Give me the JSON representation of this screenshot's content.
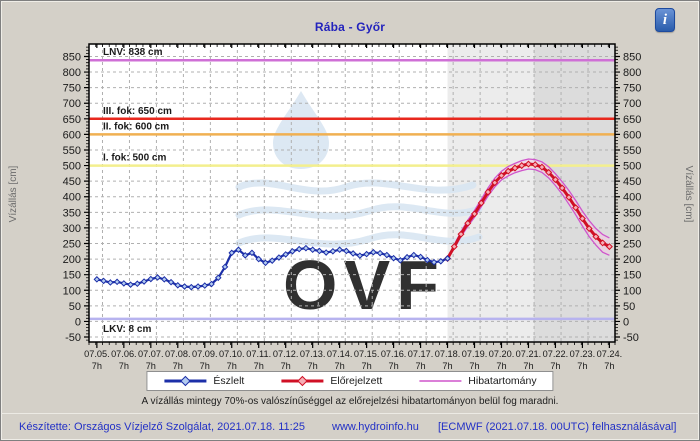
{
  "header": {
    "title": "Rába - Győr",
    "info_glyph": "i"
  },
  "chart_data": {
    "type": "line",
    "title": "Rába - Győr",
    "y_axis_label": "Vízállás [cm]",
    "y_ticks": {
      "min": -50,
      "max": 850,
      "step": 50
    },
    "x_labels": [
      "07.05.",
      "07.06.",
      "07.07.",
      "07.08.",
      "07.09.",
      "07.10.",
      "07.11.",
      "07.12.",
      "07.13.",
      "07.14.",
      "07.15.",
      "07.16.",
      "07.17.",
      "07.18.",
      "07.19.",
      "07.20.",
      "07.21.",
      "07.22.",
      "07.23.",
      "07.24."
    ],
    "x_sub_label": "7h",
    "sample_interval_hours": 6,
    "reference_lines": [
      {
        "name": "LNV",
        "label": "LNV: 838 cm",
        "value": 838,
        "color": "#cf6fd6",
        "label_below": false
      },
      {
        "name": "III. fok",
        "label": "III. fok: 650 cm",
        "value": 650,
        "color": "#e8281e",
        "label_below": false
      },
      {
        "name": "II. fok",
        "label": "II. fok: 600 cm",
        "value": 600,
        "color": "#f0b052",
        "label_below": false
      },
      {
        "name": "I. fok",
        "label": "I. fok: 500 cm",
        "value": 500,
        "color": "#f3ef8e",
        "label_below": false
      },
      {
        "name": "LKV",
        "label": "LKV: 8 cm",
        "value": 8,
        "color": "#b7b3ef",
        "label_below": true
      }
    ],
    "series": [
      {
        "name": "Észlelt",
        "type": "observed",
        "color": "#1c2fa8",
        "marker_fill": "#b4ccf0",
        "start_day_offset": 0.2917,
        "step_days": 0.25,
        "values": [
          135,
          130,
          125,
          127,
          122,
          118,
          121,
          128,
          136,
          141,
          135,
          126,
          116,
          112,
          110,
          112,
          115,
          120,
          140,
          175,
          220,
          230,
          212,
          220,
          200,
          188,
          195,
          205,
          215,
          225,
          232,
          235,
          230,
          226,
          221,
          225,
          230,
          226,
          218,
          211,
          216,
          222,
          219,
          213,
          203,
          196,
          206,
          213,
          207,
          197,
          190,
          193,
          202
        ]
      },
      {
        "name": "Előrejelzett",
        "type": "forecast",
        "color": "#d01025",
        "marker_fill": "#f6aeb6",
        "start_day_offset": 13.2917,
        "step_days": 0.25,
        "values": [
          202,
          240,
          280,
          315,
          345,
          380,
          415,
          445,
          468,
          482,
          492,
          500,
          505,
          503,
          495,
          478,
          455,
          428,
          398,
          365,
          330,
          298,
          272,
          252,
          240
        ]
      },
      {
        "name": "Hibatartomány felső",
        "type": "band_upper",
        "color": "#cf55cc",
        "start_day_offset": 13.2917,
        "step_days": 0.25,
        "values": [
          202,
          246,
          288,
          325,
          356,
          392,
          428,
          459,
          482,
          497,
          507,
          516,
          521,
          519,
          512,
          496,
          474,
          448,
          420,
          388,
          354,
          323,
          298,
          279,
          268
        ]
      },
      {
        "name": "Hibatartomány alsó",
        "type": "band_lower",
        "color": "#cf55cc",
        "start_day_offset": 13.2917,
        "step_days": 0.25,
        "values": [
          202,
          234,
          272,
          305,
          334,
          368,
          402,
          431,
          454,
          467,
          477,
          484,
          489,
          487,
          478,
          460,
          436,
          408,
          376,
          342,
          306,
          272,
          245,
          222,
          212
        ]
      }
    ],
    "forecast_regions": [
      {
        "from_day": 13.2917,
        "to_day": 16.5,
        "color": "#ececec"
      },
      {
        "from_day": 16.5,
        "to_day": 19.5,
        "color": "#dcdcdc"
      }
    ],
    "watermark_text": "OVF"
  },
  "legend": {
    "items": [
      {
        "label": "Észlelt",
        "color": "#1c2fa8",
        "marker_fill": "#b4ccf0",
        "has_marker": true
      },
      {
        "label": "Előrejelzett",
        "color": "#d01025",
        "marker_fill": "#f6aeb6",
        "has_marker": true
      },
      {
        "label": "Hibatartomány",
        "color": "#cf55cc",
        "has_marker": false
      }
    ]
  },
  "note": "A vízállás mintegy 70%-os valószínűséggel az előrejelzési hibatartományon belül fog maradni.",
  "footer": {
    "created_by": "Készítette: Országos Vízjelző Szolgálat, 2021.07.18. 11:25",
    "website": "www.hydroinfo.hu",
    "model_info": "[ECMWF (2021.07.18. 00UTC) felhasználásával]"
  }
}
